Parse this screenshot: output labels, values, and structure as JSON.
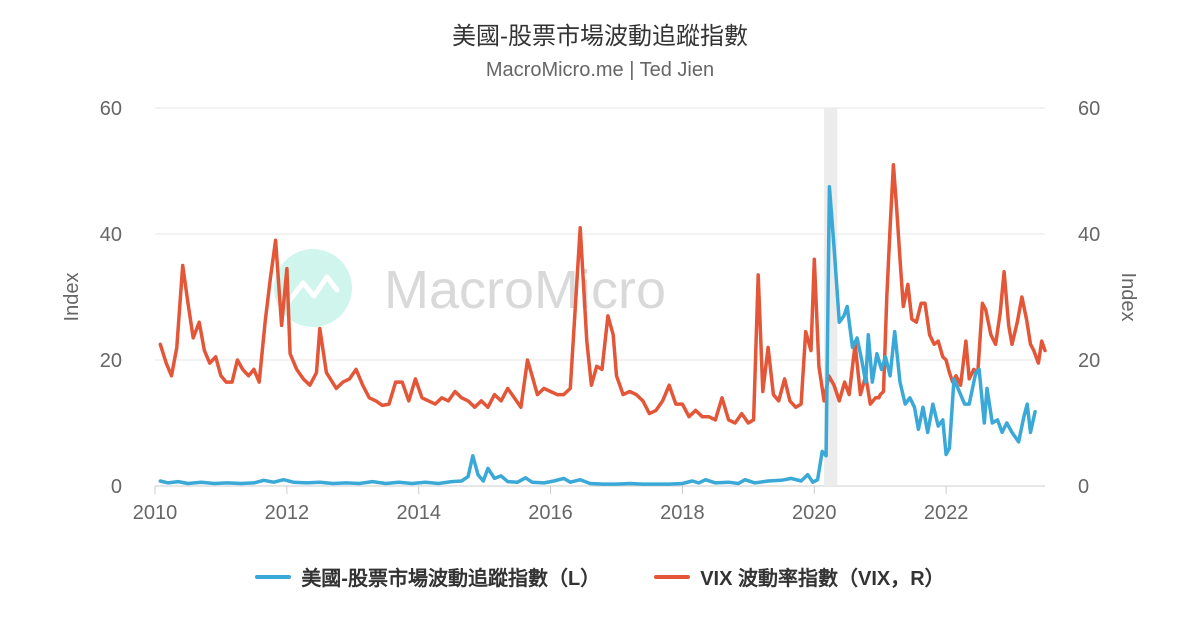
{
  "header": {
    "title": "美國-股票市場波動追蹤指數",
    "subtitle": "MacroMicro.me | Ted Jien"
  },
  "watermark": {
    "text": "MacroMicro"
  },
  "colors": {
    "series_l": "#3aa9d8",
    "series_r": "#e35638",
    "grid": "#e6e6e6",
    "axis_text": "#666666",
    "highlight": "#ececec"
  },
  "chart_data": {
    "type": "line",
    "x_axis": {
      "min": 2010.0,
      "max": 2023.5,
      "ticks": [
        "2010",
        "2012",
        "2014",
        "2016",
        "2018",
        "2020",
        "2022"
      ]
    },
    "y_left": {
      "label": "Index",
      "min": 0,
      "max": 60,
      "ticks": [
        "0",
        "20",
        "40",
        "60"
      ]
    },
    "y_right": {
      "label": "Index",
      "min": 0,
      "max": 60,
      "ticks": [
        "0",
        "20",
        "40",
        "60"
      ]
    },
    "highlight_band": {
      "from": 2020.15,
      "to": 2020.35
    },
    "series": [
      {
        "name": "美國-股票市場波動追蹤指數（L）",
        "axis": "left",
        "points": [
          [
            2010.08,
            0.8
          ],
          [
            2010.2,
            0.5
          ],
          [
            2010.35,
            0.7
          ],
          [
            2010.5,
            0.4
          ],
          [
            2010.7,
            0.6
          ],
          [
            2010.9,
            0.4
          ],
          [
            2011.1,
            0.5
          ],
          [
            2011.3,
            0.4
          ],
          [
            2011.5,
            0.5
          ],
          [
            2011.65,
            0.9
          ],
          [
            2011.8,
            0.6
          ],
          [
            2011.95,
            1.0
          ],
          [
            2012.1,
            0.6
          ],
          [
            2012.3,
            0.5
          ],
          [
            2012.5,
            0.6
          ],
          [
            2012.7,
            0.4
          ],
          [
            2012.9,
            0.5
          ],
          [
            2013.1,
            0.4
          ],
          [
            2013.3,
            0.7
          ],
          [
            2013.5,
            0.4
          ],
          [
            2013.7,
            0.6
          ],
          [
            2013.9,
            0.4
          ],
          [
            2014.1,
            0.6
          ],
          [
            2014.3,
            0.4
          ],
          [
            2014.5,
            0.7
          ],
          [
            2014.65,
            0.8
          ],
          [
            2014.75,
            1.5
          ],
          [
            2014.82,
            4.8
          ],
          [
            2014.9,
            1.8
          ],
          [
            2014.98,
            0.8
          ],
          [
            2015.05,
            2.8
          ],
          [
            2015.15,
            1.2
          ],
          [
            2015.25,
            1.6
          ],
          [
            2015.35,
            0.7
          ],
          [
            2015.5,
            0.6
          ],
          [
            2015.62,
            1.3
          ],
          [
            2015.72,
            0.6
          ],
          [
            2015.9,
            0.5
          ],
          [
            2016.05,
            0.8
          ],
          [
            2016.2,
            1.2
          ],
          [
            2016.3,
            0.6
          ],
          [
            2016.45,
            1.0
          ],
          [
            2016.6,
            0.4
          ],
          [
            2016.8,
            0.3
          ],
          [
            2017.0,
            0.3
          ],
          [
            2017.2,
            0.4
          ],
          [
            2017.4,
            0.3
          ],
          [
            2017.6,
            0.3
          ],
          [
            2017.8,
            0.3
          ],
          [
            2018.0,
            0.4
          ],
          [
            2018.15,
            0.8
          ],
          [
            2018.25,
            0.5
          ],
          [
            2018.35,
            1.0
          ],
          [
            2018.5,
            0.5
          ],
          [
            2018.7,
            0.6
          ],
          [
            2018.85,
            0.4
          ],
          [
            2018.95,
            1.0
          ],
          [
            2019.1,
            0.5
          ],
          [
            2019.3,
            0.8
          ],
          [
            2019.5,
            0.9
          ],
          [
            2019.65,
            1.2
          ],
          [
            2019.8,
            0.8
          ],
          [
            2019.9,
            1.8
          ],
          [
            2019.98,
            0.6
          ],
          [
            2020.05,
            1.0
          ],
          [
            2020.12,
            5.5
          ],
          [
            2020.18,
            4.8
          ],
          [
            2020.23,
            47.5
          ],
          [
            2020.3,
            38.0
          ],
          [
            2020.38,
            26.0
          ],
          [
            2020.45,
            27.0
          ],
          [
            2020.5,
            28.5
          ],
          [
            2020.58,
            22.0
          ],
          [
            2020.65,
            23.5
          ],
          [
            2020.72,
            20.0
          ],
          [
            2020.78,
            16.5
          ],
          [
            2020.82,
            24.0
          ],
          [
            2020.88,
            16.5
          ],
          [
            2020.95,
            21.0
          ],
          [
            2021.02,
            18.5
          ],
          [
            2021.08,
            20.5
          ],
          [
            2021.15,
            17.5
          ],
          [
            2021.22,
            24.5
          ],
          [
            2021.3,
            16.5
          ],
          [
            2021.38,
            13.0
          ],
          [
            2021.45,
            14.0
          ],
          [
            2021.52,
            12.5
          ],
          [
            2021.58,
            9.0
          ],
          [
            2021.65,
            12.5
          ],
          [
            2021.72,
            8.5
          ],
          [
            2021.8,
            13.0
          ],
          [
            2021.88,
            9.5
          ],
          [
            2021.95,
            10.5
          ],
          [
            2022.0,
            5.0
          ],
          [
            2022.05,
            6.0
          ],
          [
            2022.12,
            17.0
          ],
          [
            2022.2,
            15.0
          ],
          [
            2022.28,
            13.0
          ],
          [
            2022.35,
            13.0
          ],
          [
            2022.45,
            18.0
          ],
          [
            2022.5,
            18.5
          ],
          [
            2022.58,
            10.0
          ],
          [
            2022.62,
            15.5
          ],
          [
            2022.7,
            10.0
          ],
          [
            2022.78,
            10.5
          ],
          [
            2022.85,
            8.5
          ],
          [
            2022.92,
            10.0
          ],
          [
            2023.0,
            8.5
          ],
          [
            2023.1,
            7.0
          ],
          [
            2023.18,
            11.0
          ],
          [
            2023.23,
            13.0
          ],
          [
            2023.28,
            8.5
          ],
          [
            2023.35,
            11.8
          ]
        ]
      },
      {
        "name": "VIX 波動率指數（VIX，R）",
        "axis": "right",
        "points": [
          [
            2010.08,
            22.5
          ],
          [
            2010.17,
            19.5
          ],
          [
            2010.25,
            17.5
          ],
          [
            2010.33,
            22.0
          ],
          [
            2010.42,
            35.0
          ],
          [
            2010.5,
            29.0
          ],
          [
            2010.58,
            23.5
          ],
          [
            2010.67,
            26.0
          ],
          [
            2010.75,
            21.5
          ],
          [
            2010.83,
            19.5
          ],
          [
            2010.92,
            20.5
          ],
          [
            2011.0,
            17.5
          ],
          [
            2011.08,
            16.5
          ],
          [
            2011.17,
            16.5
          ],
          [
            2011.25,
            20.0
          ],
          [
            2011.33,
            18.5
          ],
          [
            2011.42,
            17.5
          ],
          [
            2011.5,
            18.5
          ],
          [
            2011.58,
            16.5
          ],
          [
            2011.67,
            26.0
          ],
          [
            2011.75,
            33.0
          ],
          [
            2011.83,
            39.0
          ],
          [
            2011.92,
            25.5
          ],
          [
            2012.0,
            34.5
          ],
          [
            2012.05,
            21.0
          ],
          [
            2012.15,
            18.5
          ],
          [
            2012.25,
            17.0
          ],
          [
            2012.35,
            16.0
          ],
          [
            2012.45,
            18.0
          ],
          [
            2012.5,
            25.0
          ],
          [
            2012.6,
            18.0
          ],
          [
            2012.75,
            15.5
          ],
          [
            2012.85,
            16.5
          ],
          [
            2012.95,
            17.0
          ],
          [
            2013.05,
            18.5
          ],
          [
            2013.15,
            16.0
          ],
          [
            2013.25,
            14.0
          ],
          [
            2013.35,
            13.5
          ],
          [
            2013.45,
            12.8
          ],
          [
            2013.55,
            13.0
          ],
          [
            2013.65,
            16.5
          ],
          [
            2013.75,
            16.5
          ],
          [
            2013.85,
            13.5
          ],
          [
            2013.95,
            17.0
          ],
          [
            2014.05,
            14.0
          ],
          [
            2014.15,
            13.5
          ],
          [
            2014.25,
            13.0
          ],
          [
            2014.35,
            14.0
          ],
          [
            2014.45,
            13.5
          ],
          [
            2014.55,
            15.0
          ],
          [
            2014.65,
            14.0
          ],
          [
            2014.75,
            13.5
          ],
          [
            2014.85,
            12.5
          ],
          [
            2014.95,
            13.5
          ],
          [
            2015.05,
            12.5
          ],
          [
            2015.15,
            14.5
          ],
          [
            2015.25,
            13.5
          ],
          [
            2015.35,
            15.5
          ],
          [
            2015.45,
            14.0
          ],
          [
            2015.55,
            12.5
          ],
          [
            2015.65,
            20.0
          ],
          [
            2015.72,
            17.5
          ],
          [
            2015.8,
            14.5
          ],
          [
            2015.9,
            15.5
          ],
          [
            2016.0,
            15.0
          ],
          [
            2016.1,
            14.5
          ],
          [
            2016.2,
            14.5
          ],
          [
            2016.3,
            15.5
          ],
          [
            2016.45,
            41.0
          ],
          [
            2016.55,
            23.0
          ],
          [
            2016.62,
            16.0
          ],
          [
            2016.7,
            19.0
          ],
          [
            2016.78,
            18.5
          ],
          [
            2016.87,
            27.0
          ],
          [
            2016.95,
            24.0
          ],
          [
            2017.0,
            17.5
          ],
          [
            2017.1,
            14.5
          ],
          [
            2017.2,
            15.0
          ],
          [
            2017.3,
            14.5
          ],
          [
            2017.4,
            13.5
          ],
          [
            2017.5,
            11.5
          ],
          [
            2017.6,
            12.0
          ],
          [
            2017.7,
            13.5
          ],
          [
            2017.8,
            16.0
          ],
          [
            2017.9,
            13.0
          ],
          [
            2018.0,
            13.0
          ],
          [
            2018.1,
            11.0
          ],
          [
            2018.2,
            12.0
          ],
          [
            2018.3,
            11.0
          ],
          [
            2018.4,
            11.0
          ],
          [
            2018.5,
            10.5
          ],
          [
            2018.6,
            14.0
          ],
          [
            2018.7,
            10.5
          ],
          [
            2018.8,
            10.0
          ],
          [
            2018.9,
            11.5
          ],
          [
            2019.0,
            10.0
          ],
          [
            2019.08,
            10.5
          ],
          [
            2019.15,
            33.5
          ],
          [
            2019.22,
            15.0
          ],
          [
            2019.3,
            22.0
          ],
          [
            2019.38,
            14.5
          ],
          [
            2019.46,
            13.5
          ],
          [
            2019.55,
            17.0
          ],
          [
            2019.63,
            13.5
          ],
          [
            2019.72,
            12.5
          ],
          [
            2019.8,
            13.0
          ],
          [
            2019.87,
            24.5
          ],
          [
            2019.95,
            21.5
          ],
          [
            2020.0,
            36.0
          ],
          [
            2020.07,
            19.0
          ],
          [
            2020.15,
            13.5
          ],
          [
            2020.22,
            17.5
          ],
          [
            2020.3,
            16.0
          ],
          [
            2020.38,
            13.5
          ],
          [
            2020.46,
            16.5
          ],
          [
            2020.53,
            14.5
          ],
          [
            2020.62,
            22.5
          ],
          [
            2020.7,
            14.5
          ],
          [
            2020.78,
            17.5
          ],
          [
            2020.85,
            13.0
          ],
          [
            2020.93,
            14.0
          ],
          [
            2020.98,
            14.0
          ],
          [
            2021.0,
            14.5
          ],
          [
            2021.05,
            15.0
          ],
          [
            2021.1,
            30.0
          ],
          [
            2021.15,
            41.0
          ],
          [
            2021.2,
            51.0
          ],
          [
            2021.25,
            44.0
          ],
          [
            2021.3,
            36.0
          ],
          [
            2021.35,
            28.5
          ],
          [
            2021.42,
            32.0
          ],
          [
            2021.48,
            26.5
          ],
          [
            2021.55,
            26.0
          ],
          [
            2021.62,
            29.0
          ],
          [
            2021.68,
            29.0
          ],
          [
            2021.75,
            24.0
          ],
          [
            2021.82,
            22.5
          ],
          [
            2021.88,
            23.0
          ],
          [
            2021.95,
            20.5
          ],
          [
            2022.0,
            20.0
          ],
          [
            2022.05,
            18.0
          ],
          [
            2022.1,
            16.5
          ],
          [
            2022.15,
            17.5
          ],
          [
            2022.22,
            16.0
          ],
          [
            2022.3,
            23.0
          ],
          [
            2022.35,
            17.0
          ],
          [
            2022.42,
            18.5
          ],
          [
            2022.48,
            18.0
          ],
          [
            2022.55,
            29.0
          ],
          [
            2022.6,
            28.0
          ],
          [
            2022.68,
            24.0
          ],
          [
            2022.75,
            22.5
          ],
          [
            2022.82,
            27.5
          ],
          [
            2022.88,
            34.0
          ],
          [
            2022.95,
            25.5
          ],
          [
            2023.0,
            22.5
          ],
          [
            2023.08,
            26.0
          ],
          [
            2023.15,
            30.0
          ],
          [
            2023.22,
            26.5
          ],
          [
            2023.28,
            22.5
          ],
          [
            2023.33,
            21.5
          ],
          [
            2023.4,
            19.5
          ],
          [
            2023.45,
            23.0
          ],
          [
            2023.5,
            21.5
          ]
        ]
      }
    ]
  }
}
